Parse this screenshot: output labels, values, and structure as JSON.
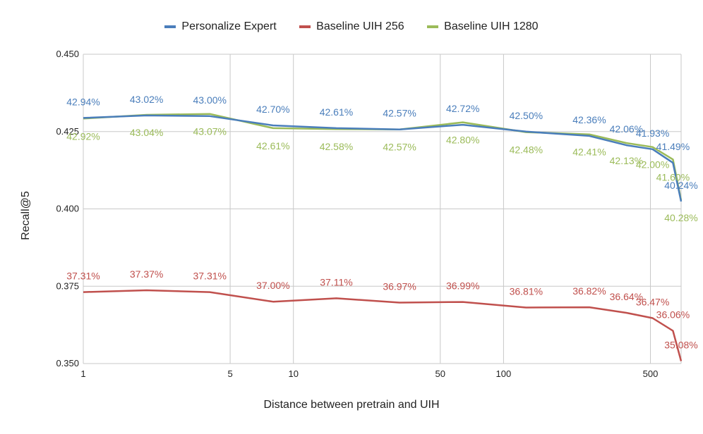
{
  "chart_data": {
    "type": "line",
    "xscale": "log",
    "xlabel": "Distance between pretrain and UIH",
    "ylabel": "Recall@5",
    "xlim": [
      1,
      700
    ],
    "ylim": [
      0.35,
      0.45
    ],
    "x_ticks": [
      1,
      5,
      10,
      50,
      100,
      500
    ],
    "y_ticks": [
      0.35,
      0.375,
      0.4,
      0.425,
      0.45
    ],
    "y_tick_labels": [
      "0.350",
      "0.375",
      "0.400",
      "0.425",
      "0.450"
    ],
    "x_grid": true,
    "y_grid": true,
    "legend_position": "top-center",
    "x": [
      1,
      2,
      4,
      8,
      16,
      32,
      64,
      128,
      256,
      384,
      512,
      640,
      700
    ],
    "series": [
      {
        "name": "Personalize Expert",
        "color": "#4a7ebb",
        "values": [
          0.4294,
          0.4302,
          0.43,
          0.427,
          0.4261,
          0.4257,
          0.4272,
          0.425,
          0.4236,
          0.4206,
          0.4193,
          0.4149,
          0.4024
        ],
        "labels": [
          "42.94%",
          "43.02%",
          "43.00%",
          "42.70%",
          "42.61%",
          "42.57%",
          "42.72%",
          "42.50%",
          "42.36%",
          "42.06%",
          "41.93%",
          "41.49%",
          "40.24%"
        ]
      },
      {
        "name": "Baseline UIH 256",
        "color": "#c0504d",
        "values": [
          0.3731,
          0.3737,
          0.3731,
          0.37,
          0.3711,
          0.3697,
          0.3699,
          0.3681,
          0.3682,
          0.3664,
          0.3647,
          0.3606,
          0.3508
        ],
        "labels": [
          "37.31%",
          "37.37%",
          "37.31%",
          "37.00%",
          "37.11%",
          "36.97%",
          "36.99%",
          "36.81%",
          "36.82%",
          "36.64%",
          "36.47%",
          "36.06%",
          "35.08%"
        ]
      },
      {
        "name": "Baseline UIH 1280",
        "color": "#9bbb59",
        "values": [
          0.4292,
          0.4304,
          0.4307,
          0.4261,
          0.4258,
          0.4257,
          0.428,
          0.4248,
          0.4241,
          0.4213,
          0.42,
          0.416,
          0.4028
        ],
        "labels": [
          "42.92%",
          "43.04%",
          "43.07%",
          "42.61%",
          "42.58%",
          "42.57%",
          "42.80%",
          "42.48%",
          "42.41%",
          "42.13%",
          "42.00%",
          "41.60%",
          "40.28%"
        ]
      }
    ]
  }
}
